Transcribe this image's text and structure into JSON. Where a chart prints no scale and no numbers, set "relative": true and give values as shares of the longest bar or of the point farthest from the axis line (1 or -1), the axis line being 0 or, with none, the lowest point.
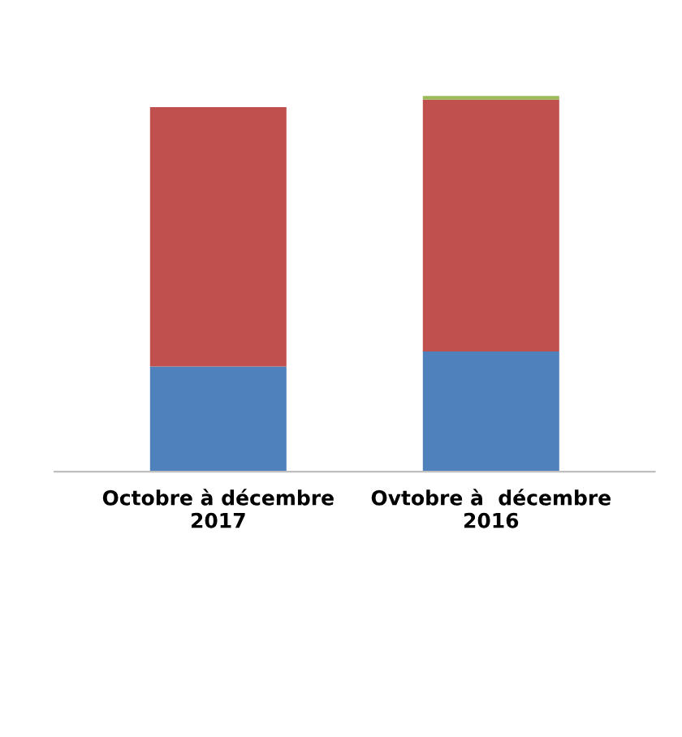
{
  "chart_data": {
    "type": "bar",
    "relative": true,
    "stacked": true,
    "categories": [
      "Octobre à décembre 2017",
      "Ovtobre à  décembre 2016"
    ],
    "series": [
      {
        "color": "#4f81bd",
        "values": [
          0.28,
          0.32
        ]
      },
      {
        "color": "#c0504d",
        "values": [
          0.69,
          0.67
        ]
      },
      {
        "color": "#9bbb59",
        "values": [
          0,
          0.01
        ]
      }
    ]
  }
}
